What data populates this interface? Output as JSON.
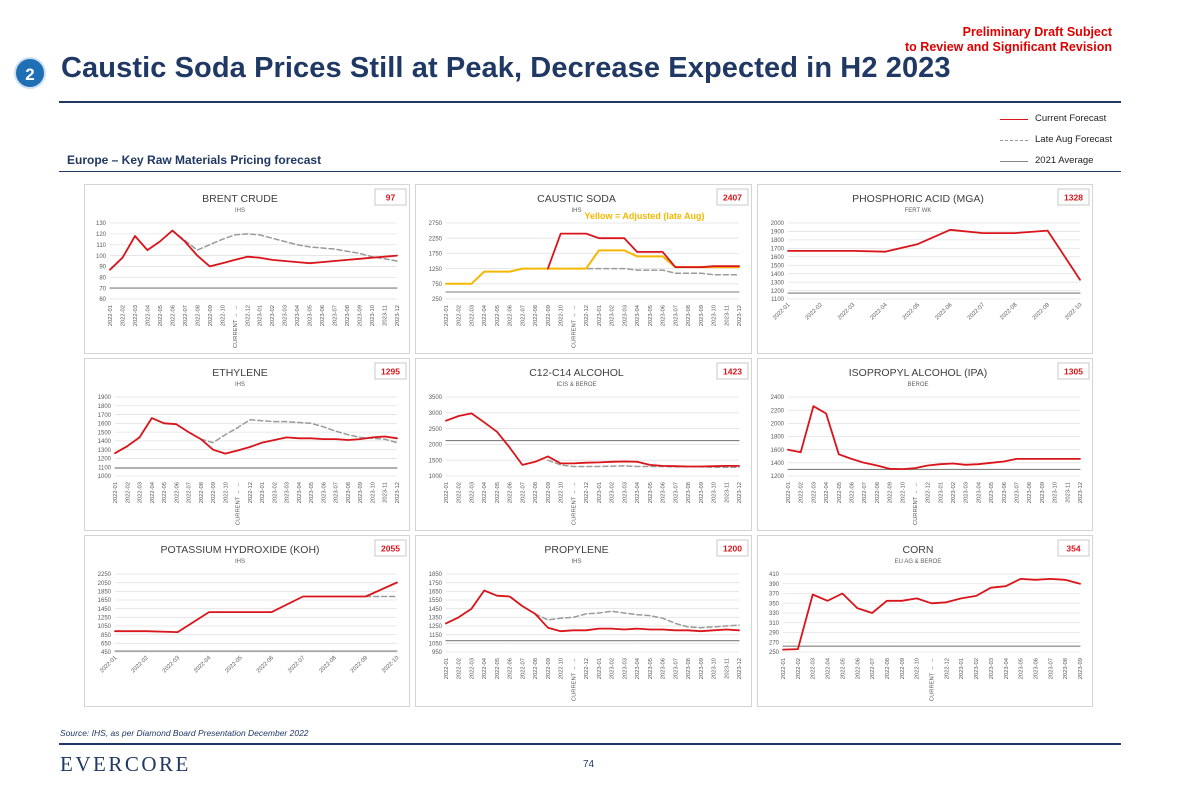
{
  "header": {
    "draft_line1": "Preliminary Draft Subject",
    "draft_line2": "to Review and Significant Revision",
    "badge": "2",
    "title": "Caustic Soda Prices Still at Peak, Decrease Expected in H2 2023",
    "subtitle": "Europe – Key Raw Materials Pricing forecast"
  },
  "legend": {
    "current": "Current Forecast",
    "late_aug": "Late Aug Forecast",
    "avg": "2021 Average"
  },
  "footer": {
    "source": "Source: IHS, as per Diamond Board Presentation December 2022",
    "logo": "EVERCORE",
    "page": "74"
  },
  "colors": {
    "current": "#d9141a",
    "late_aug": "#9a9a9a",
    "average": "#7f7f7f",
    "adjusted": "#f5b800",
    "navy": "#1f3864"
  },
  "chart_data": [
    {
      "type": "line",
      "title": "BRENT CRUDE",
      "source": "IHS",
      "badge": "97",
      "x": [
        "2022-01",
        "2022-02",
        "2022-03",
        "2022-04",
        "2022-05",
        "2022-06",
        "2022-07",
        "2022-08",
        "2022-09",
        "2022-10",
        "CURRENT → →",
        "2022-12",
        "2023-01",
        "2023-02",
        "2023-03",
        "2023-04",
        "2023-05",
        "2023-06",
        "2023-07",
        "2023-08",
        "2023-09",
        "2023-10",
        "2023-11",
        "2023-12"
      ],
      "yticks": [
        60,
        70,
        80,
        90,
        100,
        110,
        120,
        130
      ],
      "ylim": [
        60,
        130
      ],
      "series": [
        {
          "name": "Current Forecast",
          "style": "current",
          "values": [
            87,
            98,
            118,
            105,
            113,
            123,
            113,
            100,
            90,
            93,
            96,
            99,
            98,
            96,
            95,
            94,
            93,
            94,
            95,
            96,
            97,
            98,
            99,
            100
          ]
        },
        {
          "name": "Late Aug Forecast",
          "style": "lateaug",
          "values": [
            null,
            null,
            null,
            null,
            null,
            123,
            114,
            105,
            110,
            115,
            119,
            120,
            119,
            116,
            113,
            110,
            108,
            107,
            106,
            104,
            102,
            99,
            97,
            95
          ]
        },
        {
          "name": "2021 Average",
          "style": "average",
          "values": [
            70,
            70,
            70,
            70,
            70,
            70,
            70,
            70,
            70,
            70,
            70,
            70,
            70,
            70,
            70,
            70,
            70,
            70,
            70,
            70,
            70,
            70,
            70,
            70
          ]
        }
      ]
    },
    {
      "type": "line",
      "title": "CAUSTIC SODA",
      "source": "IHS",
      "badge": "2407",
      "annotation": "Yellow = Adjusted (late Aug)",
      "x": [
        "2022-01",
        "2022-02",
        "2022-03",
        "2022-04",
        "2022-05",
        "2022-06",
        "2022-07",
        "2022-08",
        "2022-09",
        "2022-10",
        "CURRENT → →",
        "2022-12",
        "2023-01",
        "2023-02",
        "2023-03",
        "2023-04",
        "2023-05",
        "2023-06",
        "2023-07",
        "2023-08",
        "2023-09",
        "2023-10",
        "2023-11",
        "2023-12"
      ],
      "yticks": [
        250,
        750,
        1250,
        1750,
        2250,
        2750
      ],
      "ylim": [
        250,
        2750
      ],
      "series": [
        {
          "name": "Current Forecast",
          "style": "current",
          "values": [
            null,
            null,
            null,
            null,
            null,
            null,
            null,
            null,
            1250,
            2400,
            2400,
            2400,
            2250,
            2250,
            2250,
            1800,
            1800,
            1800,
            1300,
            1300,
            1300,
            1330,
            1330,
            1330
          ]
        },
        {
          "name": "Late Aug Forecast",
          "style": "lateaug",
          "values": [
            null,
            null,
            null,
            null,
            null,
            null,
            null,
            null,
            1250,
            1250,
            1250,
            1250,
            1250,
            1250,
            1250,
            1200,
            1200,
            1200,
            1100,
            1100,
            1100,
            1050,
            1050,
            1050
          ]
        },
        {
          "name": "Adjusted (late Aug)",
          "style": "adjusted",
          "values": [
            750,
            750,
            750,
            1150,
            1150,
            1150,
            1250,
            1250,
            1250,
            1250,
            1250,
            1250,
            1850,
            1850,
            1850,
            1650,
            1650,
            1650,
            1300,
            1300,
            1300,
            1300,
            1300,
            1300
          ]
        },
        {
          "name": "2021 Average",
          "style": "average",
          "values": [
            480,
            480,
            480,
            480,
            480,
            480,
            480,
            480,
            480,
            480,
            480,
            480,
            480,
            480,
            480,
            480,
            480,
            480,
            480,
            480,
            480,
            480,
            480,
            480
          ]
        }
      ]
    },
    {
      "type": "line",
      "title": "PHOSPHORIC ACID (MGA)",
      "source": "FERT WK",
      "badge": "1328",
      "x": [
        "2022-01",
        "2022-02",
        "2022-03",
        "2022-04",
        "2022-05",
        "2022-06",
        "2022-07",
        "2022-08",
        "2022-09",
        "2022-10"
      ],
      "yticks": [
        1100,
        1200,
        1300,
        1400,
        1500,
        1600,
        1700,
        1800,
        1900,
        2000
      ],
      "ylim": [
        1100,
        2000
      ],
      "series": [
        {
          "name": "Current Forecast",
          "style": "current",
          "values": [
            1670,
            1670,
            1670,
            1660,
            1750,
            1920,
            1880,
            1880,
            1910,
            1328
          ]
        },
        {
          "name": "2021 Average",
          "style": "average",
          "values": [
            1170,
            1170,
            1170,
            1170,
            1170,
            1170,
            1170,
            1170,
            1170,
            1170
          ]
        }
      ]
    },
    {
      "type": "line",
      "title": "ETHYLENE",
      "source": "IHS",
      "badge": "1295",
      "x": [
        "2022-01",
        "2022-02",
        "2022-03",
        "2022-04",
        "2022-05",
        "2022-06",
        "2022-07",
        "2022-08",
        "2022-09",
        "2022-10",
        "CURRENT → →",
        "2022-12",
        "2023-01",
        "2023-02",
        "2023-03",
        "2023-04",
        "2023-05",
        "2023-06",
        "2023-07",
        "2023-08",
        "2023-09",
        "2023-10",
        "2023-11",
        "2023-12"
      ],
      "yticks": [
        1000,
        1100,
        1200,
        1300,
        1400,
        1500,
        1600,
        1700,
        1800,
        1900
      ],
      "ylim": [
        1000,
        1900
      ],
      "series": [
        {
          "name": "Current Forecast",
          "style": "current",
          "values": [
            1260,
            1340,
            1440,
            1660,
            1600,
            1590,
            1500,
            1420,
            1300,
            1255,
            1290,
            1330,
            1380,
            1410,
            1440,
            1430,
            1430,
            1420,
            1420,
            1410,
            1420,
            1440,
            1450,
            1430
          ]
        },
        {
          "name": "Late Aug Forecast",
          "style": "lateaug",
          "values": [
            null,
            null,
            null,
            null,
            null,
            null,
            null,
            1420,
            1380,
            1470,
            1550,
            1640,
            1630,
            1620,
            1620,
            1610,
            1600,
            1560,
            1510,
            1470,
            1440,
            1430,
            1420,
            1380
          ]
        },
        {
          "name": "2021 Average",
          "style": "average",
          "values": [
            1090,
            1090,
            1090,
            1090,
            1090,
            1090,
            1090,
            1090,
            1090,
            1090,
            1090,
            1090,
            1090,
            1090,
            1090,
            1090,
            1090,
            1090,
            1090,
            1090,
            1090,
            1090,
            1090,
            1090
          ]
        }
      ]
    },
    {
      "type": "line",
      "title": "C12-C14 ALCOHOL",
      "source": "ICIS & BEROE",
      "badge": "1423",
      "x": [
        "2022-01",
        "2022-02",
        "2022-03",
        "2022-04",
        "2022-05",
        "2022-06",
        "2022-07",
        "2022-08",
        "2022-09",
        "2022-10",
        "CURRENT → →",
        "2022-12",
        "2023-01",
        "2023-02",
        "2023-03",
        "2023-04",
        "2023-05",
        "2023-06",
        "2023-07",
        "2023-08",
        "2023-09",
        "2023-10",
        "2023-11",
        "2023-12"
      ],
      "yticks": [
        1000,
        1500,
        2000,
        2500,
        3000,
        3500
      ],
      "ylim": [
        1000,
        3500
      ],
      "series": [
        {
          "name": "Current Forecast",
          "style": "current",
          "values": [
            2750,
            2900,
            2980,
            2700,
            2400,
            1900,
            1350,
            1450,
            1620,
            1400,
            1400,
            1420,
            1430,
            1450,
            1460,
            1450,
            1350,
            1320,
            1310,
            1300,
            1300,
            1310,
            1320,
            1320
          ]
        },
        {
          "name": "Late Aug Forecast",
          "style": "lateaug",
          "values": [
            null,
            null,
            null,
            null,
            null,
            null,
            null,
            null,
            1500,
            1350,
            1300,
            1300,
            1300,
            1310,
            1320,
            1300,
            1300,
            1300,
            1290,
            1290,
            1290,
            1280,
            1280,
            1280
          ]
        },
        {
          "name": "2021 Average",
          "style": "average",
          "values": [
            2120,
            2120,
            2120,
            2120,
            2120,
            2120,
            2120,
            2120,
            2120,
            2120,
            2120,
            2120,
            2120,
            2120,
            2120,
            2120,
            2120,
            2120,
            2120,
            2120,
            2120,
            2120,
            2120,
            2120
          ]
        }
      ]
    },
    {
      "type": "line",
      "title": "ISOPROPYL ALCOHOL (IPA)",
      "source": "BEROE",
      "badge": "1305",
      "x": [
        "2022-01",
        "2022-02",
        "2022-03",
        "2022-04",
        "2022-05",
        "2022-06",
        "2022-07",
        "2022-08",
        "2022-09",
        "2022-10",
        "CURRENT → →",
        "2022-12",
        "2023-01",
        "2023-02",
        "2023-03",
        "2023-04",
        "2023-05",
        "2023-06",
        "2023-07",
        "2023-08",
        "2023-09",
        "2023-10",
        "2023-11",
        "2023-12"
      ],
      "yticks": [
        1200,
        1400,
        1600,
        1800,
        2000,
        2200,
        2400
      ],
      "ylim": [
        1200,
        2400
      ],
      "series": [
        {
          "name": "Current Forecast",
          "style": "current",
          "values": [
            1600,
            1560,
            2260,
            2150,
            1530,
            1460,
            1400,
            1360,
            1310,
            1305,
            1320,
            1360,
            1380,
            1390,
            1370,
            1380,
            1400,
            1420,
            1460,
            1460,
            1460,
            1460,
            1460,
            1460
          ]
        },
        {
          "name": "2021 Average",
          "style": "average",
          "values": [
            1300,
            1300,
            1300,
            1300,
            1300,
            1300,
            1300,
            1300,
            1300,
            1300,
            1300,
            1300,
            1300,
            1300,
            1300,
            1300,
            1300,
            1300,
            1300,
            1300,
            1300,
            1300,
            1300,
            1300
          ]
        }
      ]
    },
    {
      "type": "line",
      "title": "POTASSIUM HYDROXIDE (KOH)",
      "source": "IHS",
      "badge": "2055",
      "x": [
        "2022-01",
        "2022-02",
        "2022-03",
        "2022-04",
        "2022-05",
        "2022-06",
        "2022-07",
        "2022-08",
        "2022-09",
        "2022-10"
      ],
      "yticks": [
        450,
        650,
        850,
        1050,
        1250,
        1450,
        1650,
        1850,
        2050,
        2250
      ],
      "ylim": [
        450,
        2250
      ],
      "series": [
        {
          "name": "Current Forecast",
          "style": "current",
          "values": [
            930,
            930,
            910,
            1370,
            1370,
            1370,
            1730,
            1730,
            1730,
            2055
          ]
        },
        {
          "name": "Late Aug Forecast",
          "style": "lateaug",
          "values": [
            null,
            null,
            null,
            null,
            null,
            null,
            null,
            null,
            1730,
            1730
          ]
        },
        {
          "name": "2021 Average",
          "style": "average",
          "values": [
            470,
            470,
            470,
            470,
            470,
            470,
            470,
            470,
            470,
            470
          ]
        }
      ]
    },
    {
      "type": "line",
      "title": "PROPYLENE",
      "source": "IHS",
      "badge": "1200",
      "x": [
        "2022-01",
        "2022-02",
        "2022-03",
        "2022-04",
        "2022-05",
        "2022-06",
        "2022-07",
        "2022-08",
        "2022-09",
        "2022-10",
        "CURRENT → →",
        "2022-12",
        "2023-01",
        "2023-02",
        "2023-03",
        "2023-04",
        "2023-05",
        "2023-06",
        "2023-07",
        "2023-08",
        "2023-09",
        "2023-10",
        "2023-11",
        "2023-12"
      ],
      "yticks": [
        950,
        1050,
        1150,
        1250,
        1350,
        1450,
        1550,
        1650,
        1750,
        1850
      ],
      "ylim": [
        950,
        1850
      ],
      "series": [
        {
          "name": "Current Forecast",
          "style": "current",
          "values": [
            1280,
            1350,
            1450,
            1660,
            1600,
            1590,
            1480,
            1390,
            1230,
            1190,
            1200,
            1200,
            1220,
            1220,
            1210,
            1220,
            1210,
            1210,
            1200,
            1200,
            1190,
            1200,
            1210,
            1200
          ]
        },
        {
          "name": "Late Aug Forecast",
          "style": "lateaug",
          "values": [
            null,
            null,
            null,
            null,
            null,
            null,
            null,
            1390,
            1320,
            1340,
            1350,
            1390,
            1400,
            1420,
            1400,
            1380,
            1370,
            1340,
            1280,
            1240,
            1230,
            1240,
            1250,
            1260
          ]
        },
        {
          "name": "2021 Average",
          "style": "average",
          "values": [
            1080,
            1080,
            1080,
            1080,
            1080,
            1080,
            1080,
            1080,
            1080,
            1080,
            1080,
            1080,
            1080,
            1080,
            1080,
            1080,
            1080,
            1080,
            1080,
            1080,
            1080,
            1080,
            1080,
            1080
          ]
        }
      ]
    },
    {
      "type": "line",
      "title": "CORN",
      "source": "EU AG & BEROE",
      "badge": "354",
      "x": [
        "2022-01",
        "2022-02",
        "2022-03",
        "2022-04",
        "2022-05",
        "2022-06",
        "2022-07",
        "2022-08",
        "2022-09",
        "2022-10",
        "CURRENT → →",
        "2022-12",
        "2023-01",
        "2023-02",
        "2023-03",
        "2023-04",
        "2023-05",
        "2023-06",
        "2023-07",
        "2023-08",
        "2023-09"
      ],
      "yticks": [
        250,
        270,
        290,
        310,
        330,
        350,
        370,
        390,
        410
      ],
      "ylim": [
        250,
        410
      ],
      "series": [
        {
          "name": "Current Forecast",
          "style": "current",
          "values": [
            255,
            256,
            368,
            355,
            370,
            340,
            330,
            355,
            355,
            360,
            350,
            352,
            360,
            365,
            382,
            385,
            400,
            398,
            400,
            398,
            390
          ]
        },
        {
          "name": "2021 Average",
          "style": "average",
          "values": [
            262,
            262,
            262,
            262,
            262,
            262,
            262,
            262,
            262,
            262,
            262,
            262,
            262,
            262,
            262,
            262,
            262,
            262,
            262,
            262,
            262
          ]
        }
      ]
    }
  ]
}
